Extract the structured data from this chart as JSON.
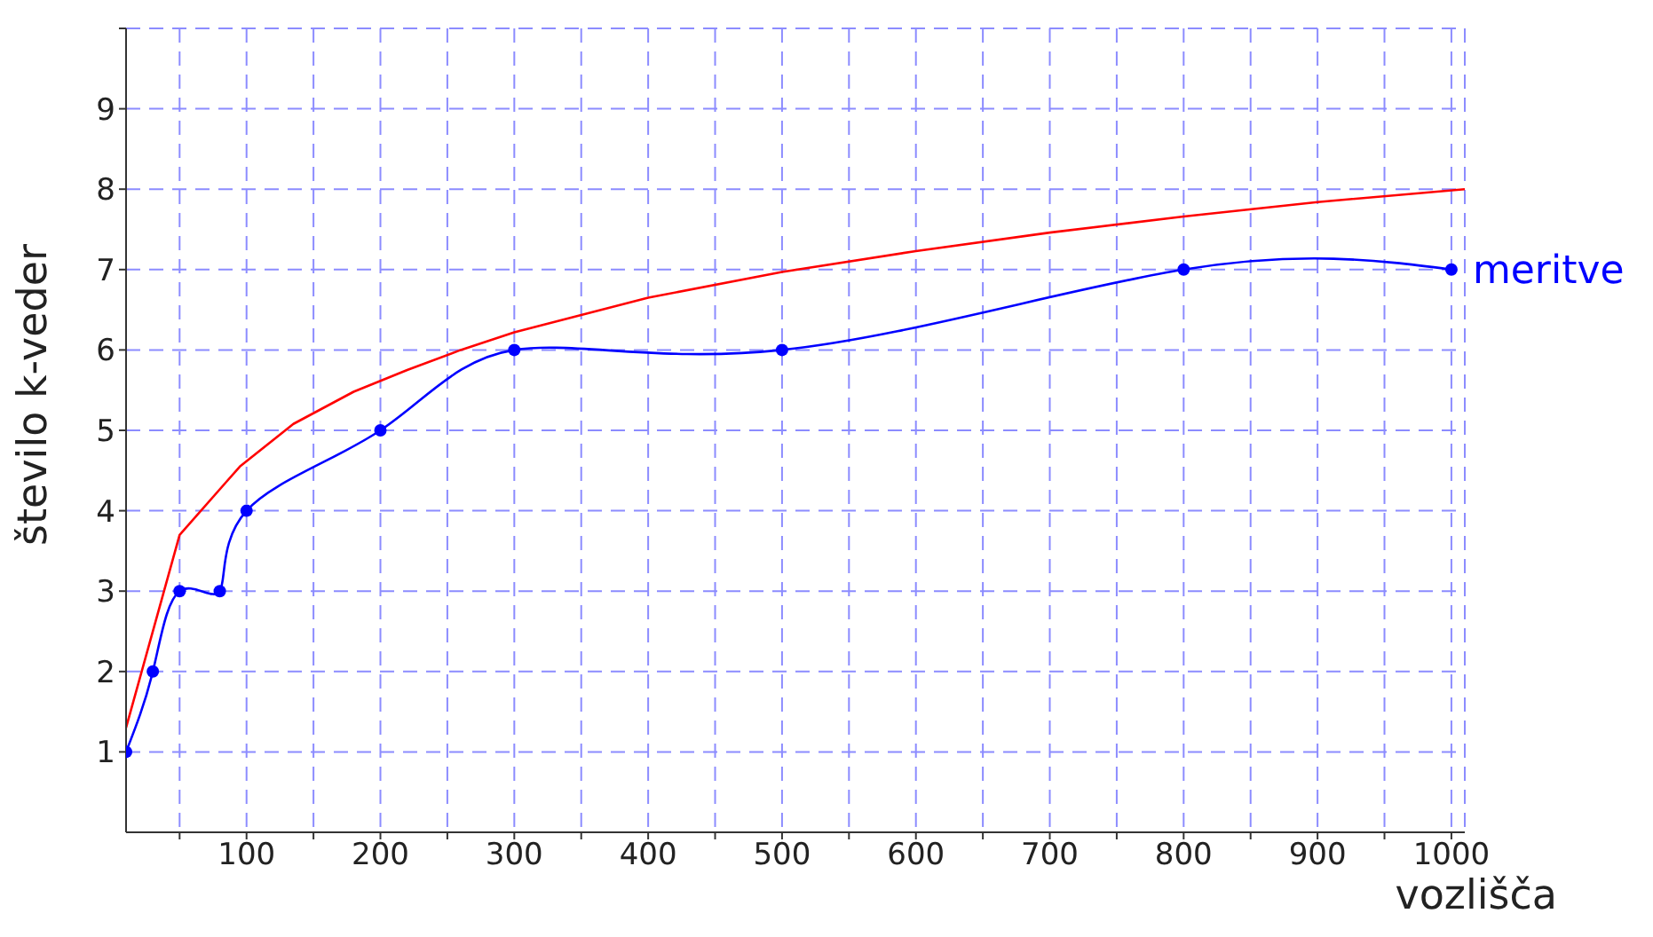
{
  "chart_data": {
    "type": "line",
    "xlabel": "vozlišča",
    "ylabel": "število k-veder",
    "xlim": [
      10,
      1010
    ],
    "ylim": [
      0,
      10
    ],
    "xticks": [
      {
        "value": 50,
        "label": null
      },
      100,
      {
        "value": 150,
        "label": null
      },
      200,
      {
        "value": 250,
        "label": null
      },
      300,
      {
        "value": 350,
        "label": null
      },
      400,
      {
        "value": 450,
        "label": null
      },
      500,
      {
        "value": 550,
        "label": null
      },
      600,
      {
        "value": 650,
        "label": null
      },
      700,
      {
        "value": 750,
        "label": null
      },
      800,
      {
        "value": 850,
        "label": null
      },
      900,
      {
        "value": 950,
        "label": null
      },
      1000
    ],
    "yticks": [
      1,
      2,
      3,
      4,
      5,
      6,
      7,
      8,
      9,
      {
        "value": 10,
        "label": null
      }
    ],
    "grid": true,
    "series": [
      {
        "color": "#ff0000",
        "marker": "none",
        "x": [
          10,
          50,
          95,
          135,
          180,
          220,
          260,
          300,
          400,
          500,
          600,
          700,
          800,
          900,
          1010
        ],
        "values": [
          1.3,
          3.7,
          4.55,
          5.08,
          5.48,
          5.75,
          6.0,
          6.22,
          6.65,
          6.97,
          7.23,
          7.46,
          7.66,
          7.84,
          8.0
        ]
      },
      {
        "name": "meritve",
        "color": "#0000ff",
        "marker": "circle",
        "x": [
          10,
          30,
          50,
          80,
          100,
          200,
          300,
          500,
          800,
          1000
        ],
        "values": [
          1,
          2,
          3,
          3,
          4,
          5,
          6,
          6,
          7,
          7
        ]
      }
    ]
  }
}
